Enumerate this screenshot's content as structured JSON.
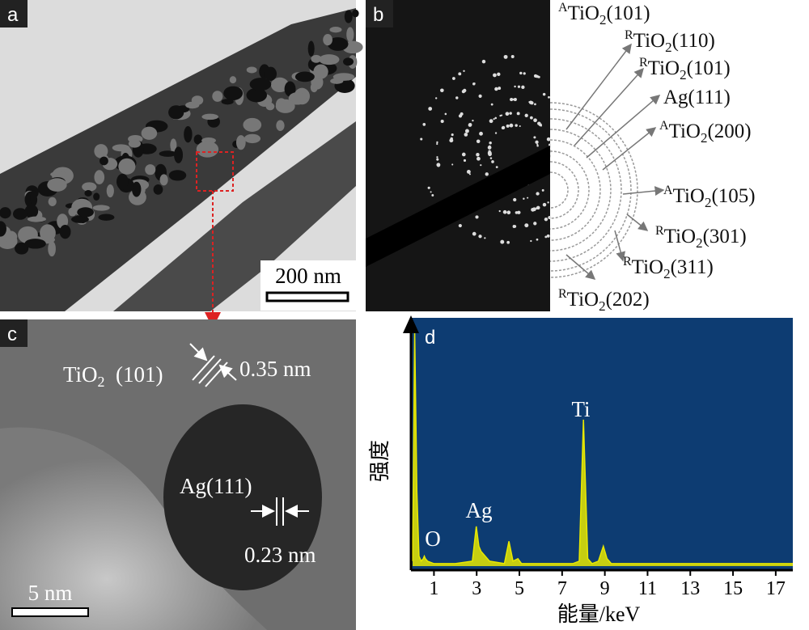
{
  "panel_a": {
    "label": "a",
    "scale_bar": "200 nm"
  },
  "panel_b": {
    "label": "b",
    "ring_labels": [
      {
        "sup": "A",
        "main": "TiO",
        "sub": "2",
        "tail": "(101)"
      },
      {
        "sup": "R",
        "main": "TiO",
        "sub": "2",
        "tail": "(110)"
      },
      {
        "sup": "R",
        "main": "TiO",
        "sub": "2",
        "tail": "(101)"
      },
      {
        "main": "Ag(111)"
      },
      {
        "sup": "A",
        "main": "TiO",
        "sub": "2",
        "tail": "(200)"
      },
      {
        "sup": "A",
        "main": "TiO",
        "sub": "2",
        "tail": "(105)"
      },
      {
        "sup": "R",
        "main": "TiO",
        "sub": "2",
        "tail": "(301)"
      },
      {
        "sup": "R",
        "main": "TiO",
        "sub": "2",
        "tail": "(311)"
      },
      {
        "sup": "R",
        "main": "TiO",
        "sub": "2",
        "tail": "(202)"
      }
    ]
  },
  "panel_c": {
    "label": "c",
    "scale_bar": "5 nm",
    "tio2_label": {
      "main": "TiO",
      "sub": "2",
      "tail": "  (101)"
    },
    "tio2_spacing": "0.35 nm",
    "ag_label": "Ag(111)",
    "ag_spacing": "0.23 nm"
  },
  "chart_data": {
    "type": "line",
    "panel_label": "d",
    "x_label": "能量/keV",
    "y_label": "强度",
    "color": "#e8e800",
    "annotations": [
      "O",
      "Ag",
      "Ti"
    ],
    "x": [
      0.0,
      0.1,
      0.2,
      0.3,
      0.4,
      0.5,
      0.55,
      0.6,
      0.7,
      1.0,
      2.0,
      2.8,
      2.98,
      3.1,
      3.2,
      3.4,
      3.6,
      4.3,
      4.51,
      4.7,
      4.93,
      5.1,
      6.0,
      7.5,
      7.8,
      8.0,
      8.2,
      8.4,
      8.7,
      8.93,
      9.1,
      9.3,
      10.0,
      12.0,
      14.0,
      16.0,
      17.8
    ],
    "values": [
      2,
      94,
      30,
      4,
      2,
      3,
      4,
      3,
      2,
      1,
      1,
      2,
      16,
      8,
      6,
      4,
      2,
      1,
      10,
      2,
      3,
      1,
      1,
      1,
      2,
      59,
      3,
      1,
      2,
      8,
      3,
      1,
      1,
      1,
      1,
      1,
      1
    ],
    "xlim": [
      0,
      17.8
    ],
    "ylim": [
      0,
      100
    ],
    "xticks": [
      1,
      3,
      5,
      7,
      9,
      11,
      13,
      15,
      17
    ]
  }
}
